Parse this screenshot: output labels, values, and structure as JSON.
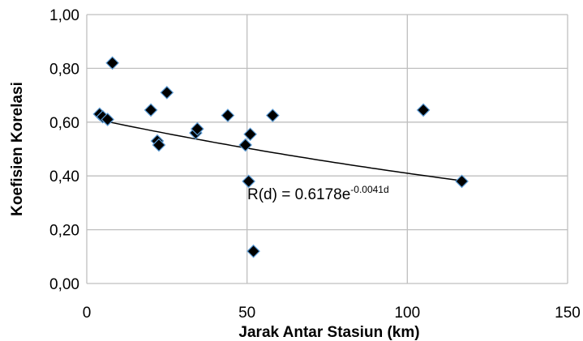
{
  "chart_data": {
    "type": "scatter",
    "title": "",
    "xlabel": "Jarak Antar Stasiun (km)",
    "ylabel": "Koefisien Korelasi",
    "xlim": [
      0,
      150
    ],
    "ylim": [
      0,
      1
    ],
    "x_ticks": [
      0,
      50,
      100,
      150
    ],
    "x_tick_labels": [
      "0",
      "50",
      "100",
      "150"
    ],
    "y_ticks": [
      0,
      0.2,
      0.4,
      0.6,
      0.8,
      1.0
    ],
    "y_tick_labels": [
      "0,00",
      "0,20",
      "0,40",
      "0,60",
      "0,80",
      "1,00"
    ],
    "grid": true,
    "legend": "none",
    "colors": {
      "marker_fill": "#000000",
      "marker_edge": "#5b9bd5",
      "grid": "#bfbfbf",
      "trend": "#000000"
    },
    "series": [
      {
        "points": [
          {
            "x": 4,
            "y": 0.63
          },
          {
            "x": 5,
            "y": 0.62
          },
          {
            "x": 6.5,
            "y": 0.61
          },
          {
            "x": 8,
            "y": 0.82
          },
          {
            "x": 20,
            "y": 0.645
          },
          {
            "x": 22,
            "y": 0.53
          },
          {
            "x": 22.5,
            "y": 0.515
          },
          {
            "x": 25,
            "y": 0.71
          },
          {
            "x": 34,
            "y": 0.56
          },
          {
            "x": 34.5,
            "y": 0.575
          },
          {
            "x": 44,
            "y": 0.625
          },
          {
            "x": 49.5,
            "y": 0.515
          },
          {
            "x": 50.5,
            "y": 0.38
          },
          {
            "x": 51,
            "y": 0.555
          },
          {
            "x": 52,
            "y": 0.12
          },
          {
            "x": 58,
            "y": 0.625
          },
          {
            "x": 105,
            "y": 0.645
          },
          {
            "x": 117,
            "y": 0.38
          }
        ]
      }
    ],
    "trendline": {
      "a": 0.6178,
      "b": -0.0041,
      "x_range": [
        4,
        117
      ],
      "label_main": "R(d) = 0.6178e",
      "label_exp": "-0.0041d"
    }
  }
}
